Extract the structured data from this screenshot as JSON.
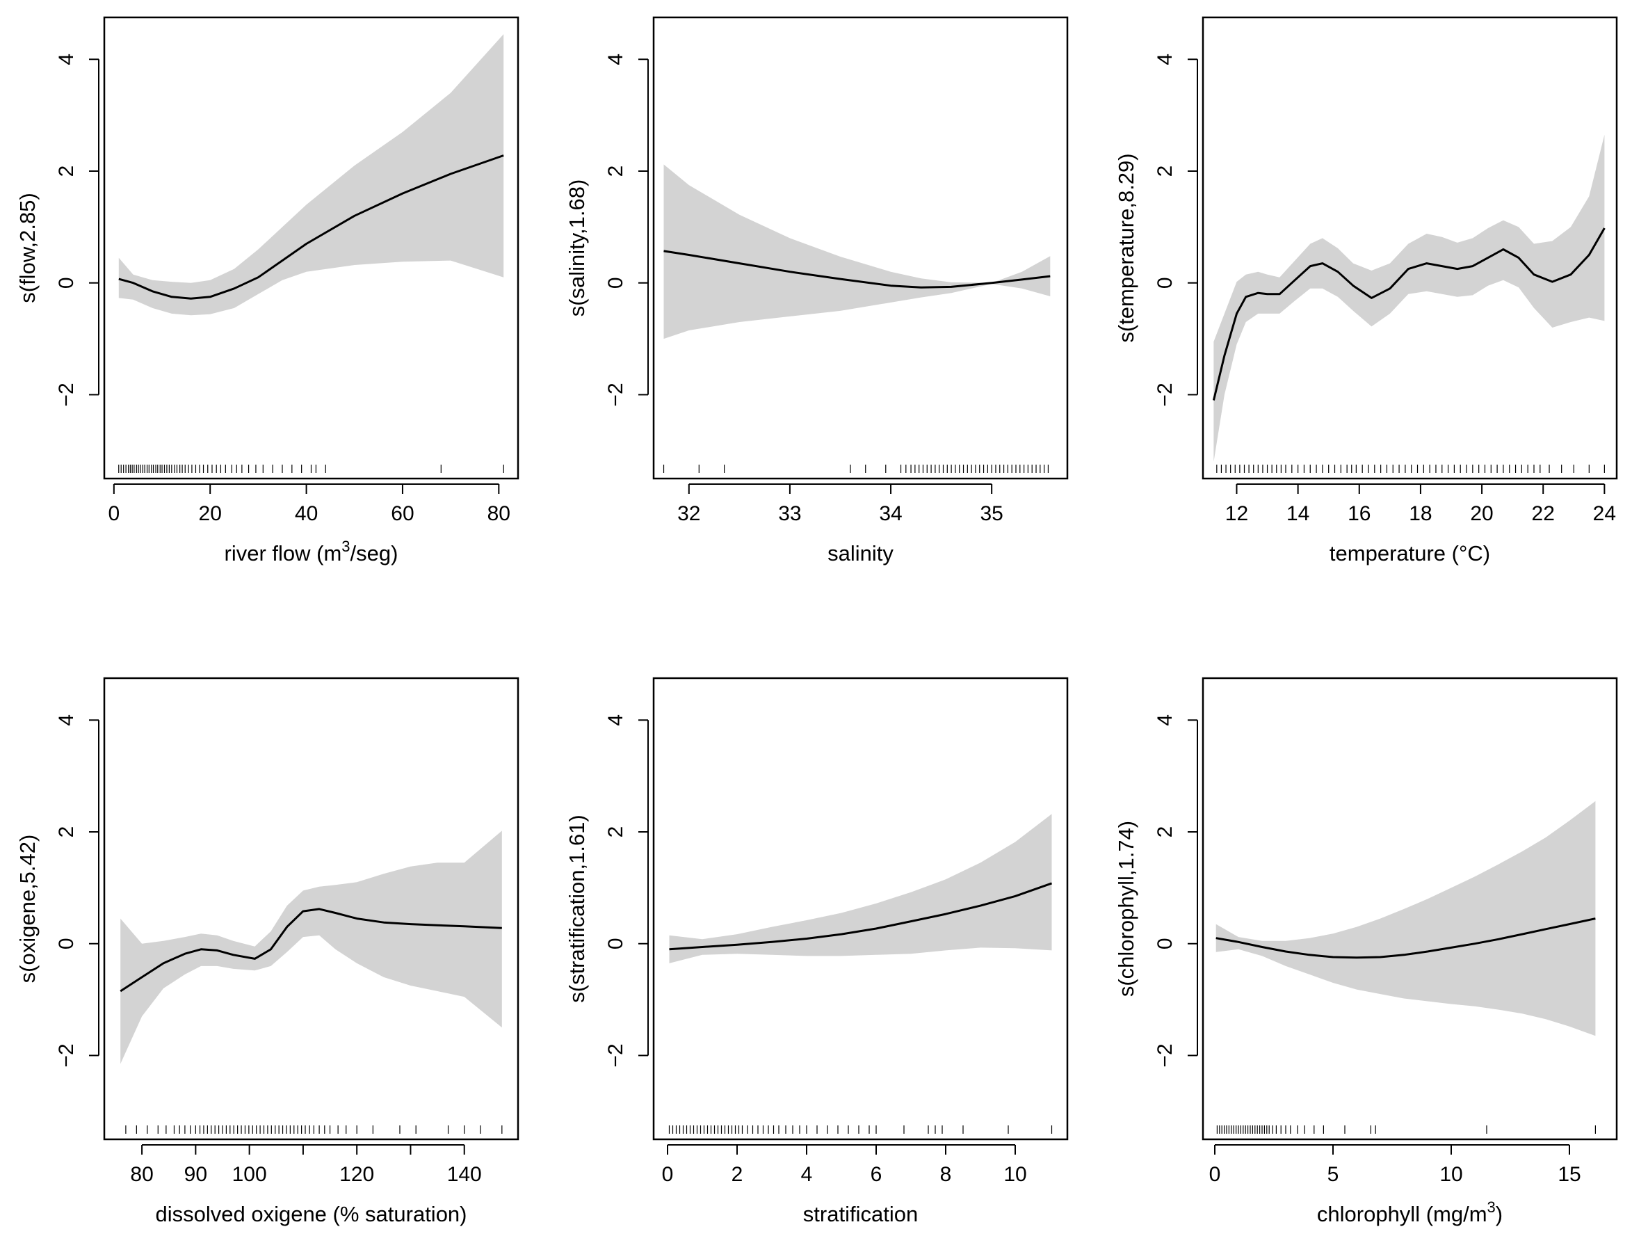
{
  "colors": {
    "band": "#d3d3d3",
    "line": "#000000",
    "frame": "#000000",
    "background": "#ffffff"
  },
  "chart_data": [
    {
      "type": "line",
      "ylabel": "s(flow,2.85)",
      "xlabel": {
        "pre": "river flow (m",
        "sup": "3",
        "post": "/seg)"
      },
      "xlim": [
        -2,
        84
      ],
      "ylim": [
        -3.5,
        4.75
      ],
      "xticks": [
        0,
        20,
        40,
        60,
        80
      ],
      "xtick_labels": [
        "0",
        "20",
        "40",
        "60",
        "80"
      ],
      "yticks": [
        -2,
        0,
        2,
        4
      ],
      "ytick_labels": [
        "−2",
        "0",
        "2",
        "4"
      ],
      "x": [
        1,
        4,
        8,
        12,
        16,
        20,
        25,
        30,
        35,
        40,
        50,
        60,
        70,
        81
      ],
      "fit": [
        0.07,
        0.0,
        -0.15,
        -0.25,
        -0.28,
        -0.25,
        -0.1,
        0.1,
        0.4,
        0.7,
        1.2,
        1.6,
        1.95,
        2.28
      ],
      "upper": [
        0.45,
        0.15,
        0.05,
        0.02,
        0.0,
        0.05,
        0.25,
        0.6,
        1.0,
        1.4,
        2.1,
        2.7,
        3.4,
        4.45
      ],
      "lower": [
        -0.27,
        -0.3,
        -0.45,
        -0.55,
        -0.58,
        -0.56,
        -0.45,
        -0.2,
        0.05,
        0.2,
        0.32,
        0.38,
        0.4,
        0.1
      ],
      "rug": [
        1,
        1.5,
        2,
        2.5,
        3,
        3.4,
        3.8,
        4.2,
        4.7,
        5.1,
        5.5,
        6,
        6.4,
        6.9,
        7.3,
        7.8,
        8.2,
        8.7,
        9.1,
        9.6,
        10,
        10.5,
        11,
        11.5,
        12,
        12.6,
        13.1,
        13.7,
        14.2,
        14.8,
        15.5,
        16.2,
        17,
        17.8,
        18.6,
        19.5,
        20.4,
        21.3,
        22.2,
        23.2,
        24.5,
        25.5,
        26.6,
        28,
        29.5,
        31,
        33,
        35,
        37,
        39,
        41,
        42,
        44,
        68,
        81
      ]
    },
    {
      "type": "line",
      "ylabel": "s(salinity,1.68)",
      "xlabel": {
        "pre": "salinity",
        "sup": "",
        "post": ""
      },
      "xlim": [
        31.65,
        35.75
      ],
      "ylim": [
        -3.5,
        4.75
      ],
      "xticks": [
        32,
        33,
        34,
        35
      ],
      "xtick_labels": [
        "32",
        "33",
        "34",
        "35"
      ],
      "yticks": [
        -2,
        0,
        2,
        4
      ],
      "ytick_labels": [
        "−2",
        "0",
        "2",
        "4"
      ],
      "x": [
        31.75,
        32,
        32.5,
        33,
        33.5,
        34,
        34.3,
        34.6,
        35,
        35.3,
        35.58
      ],
      "fit": [
        0.57,
        0.5,
        0.35,
        0.2,
        0.07,
        -0.05,
        -0.08,
        -0.07,
        0.0,
        0.06,
        0.12
      ],
      "upper": [
        2.12,
        1.75,
        1.22,
        0.8,
        0.47,
        0.2,
        0.08,
        0.01,
        0.0,
        0.2,
        0.48
      ],
      "lower": [
        -1.0,
        -0.85,
        -0.7,
        -0.6,
        -0.5,
        -0.35,
        -0.26,
        -0.18,
        -0.02,
        -0.1,
        -0.24
      ],
      "rug": [
        31.75,
        32.1,
        32.35,
        33.6,
        33.75,
        33.95,
        34.1,
        34.15,
        34.2,
        34.24,
        34.28,
        34.32,
        34.36,
        34.4,
        34.44,
        34.48,
        34.52,
        34.56,
        34.6,
        34.64,
        34.68,
        34.72,
        34.76,
        34.8,
        34.84,
        34.88,
        34.92,
        34.96,
        35.0,
        35.04,
        35.08,
        35.12,
        35.16,
        35.2,
        35.24,
        35.28,
        35.32,
        35.36,
        35.4,
        35.44,
        35.48,
        35.52,
        35.56
      ]
    },
    {
      "type": "line",
      "ylabel": "s(temperature,8.29)",
      "xlabel": {
        "pre": "temperature (°C)",
        "sup": "",
        "post": ""
      },
      "xlim": [
        10.9,
        24.4
      ],
      "ylim": [
        -3.5,
        4.75
      ],
      "xticks": [
        12,
        14,
        16,
        18,
        20,
        22,
        24
      ],
      "xtick_labels": [
        "12",
        "14",
        "16",
        "18",
        "20",
        "22",
        "24"
      ],
      "yticks": [
        -2,
        0,
        2,
        4
      ],
      "ytick_labels": [
        "−2",
        "0",
        "2",
        "4"
      ],
      "x": [
        11.25,
        11.6,
        12,
        12.3,
        12.7,
        13,
        13.4,
        13.9,
        14.4,
        14.8,
        15.3,
        15.8,
        16.4,
        17,
        17.6,
        18.2,
        18.7,
        19.2,
        19.7,
        20.2,
        20.7,
        21.2,
        21.7,
        22.3,
        22.9,
        23.5,
        24.0
      ],
      "fit": [
        -2.1,
        -1.3,
        -0.55,
        -0.25,
        -0.18,
        -0.2,
        -0.2,
        0.05,
        0.3,
        0.35,
        0.2,
        -0.05,
        -0.27,
        -0.1,
        0.25,
        0.35,
        0.3,
        0.25,
        0.3,
        0.45,
        0.6,
        0.45,
        0.15,
        0.02,
        0.15,
        0.5,
        0.98
      ],
      "upper": [
        -1.05,
        -0.55,
        0.02,
        0.15,
        0.2,
        0.15,
        0.1,
        0.4,
        0.7,
        0.8,
        0.62,
        0.35,
        0.22,
        0.35,
        0.7,
        0.88,
        0.82,
        0.72,
        0.8,
        0.98,
        1.12,
        1.0,
        0.7,
        0.75,
        1.0,
        1.55,
        2.65
      ],
      "lower": [
        -3.2,
        -2.0,
        -1.1,
        -0.7,
        -0.55,
        -0.55,
        -0.55,
        -0.32,
        -0.1,
        -0.1,
        -0.25,
        -0.5,
        -0.78,
        -0.55,
        -0.2,
        -0.15,
        -0.2,
        -0.25,
        -0.22,
        -0.05,
        0.05,
        -0.08,
        -0.45,
        -0.8,
        -0.7,
        -0.62,
        -0.68
      ],
      "rug": [
        11.35,
        11.5,
        11.65,
        11.8,
        11.95,
        12.1,
        12.25,
        12.4,
        12.55,
        12.7,
        12.85,
        13.0,
        13.15,
        13.3,
        13.45,
        13.6,
        13.8,
        14.0,
        14.2,
        14.4,
        14.6,
        14.8,
        15.0,
        15.2,
        15.4,
        15.6,
        15.75,
        15.9,
        16.1,
        16.3,
        16.5,
        16.7,
        16.9,
        17.1,
        17.3,
        17.5,
        17.7,
        17.9,
        18.1,
        18.3,
        18.5,
        18.7,
        18.9,
        19.1,
        19.3,
        19.5,
        19.7,
        19.9,
        20.1,
        20.3,
        20.5,
        20.7,
        20.9,
        21.1,
        21.3,
        21.5,
        21.7,
        21.9,
        22.2,
        22.6,
        23.0,
        23.5,
        24.0
      ]
    },
    {
      "type": "line",
      "ylabel": "s(oxigene,5.42)",
      "xlabel": {
        "pre": "dissolved oxigene (% saturation)",
        "sup": "",
        "post": ""
      },
      "xlim": [
        73,
        150
      ],
      "ylim": [
        -3.5,
        4.75
      ],
      "xticks": [
        80,
        90,
        100,
        110,
        120,
        130,
        140
      ],
      "xtick_labels": [
        "80",
        "90",
        "100",
        "",
        "120",
        "",
        "140"
      ],
      "yticks": [
        -2,
        0,
        2,
        4
      ],
      "ytick_labels": [
        "−2",
        "0",
        "2",
        "4"
      ],
      "x": [
        76,
        80,
        84,
        88,
        91,
        94,
        97,
        101,
        104,
        107,
        110,
        113,
        116,
        120,
        125,
        130,
        135,
        140,
        147
      ],
      "fit": [
        -0.85,
        -0.6,
        -0.35,
        -0.18,
        -0.1,
        -0.12,
        -0.2,
        -0.27,
        -0.1,
        0.3,
        0.58,
        0.62,
        0.55,
        0.45,
        0.38,
        0.35,
        0.33,
        0.31,
        0.28
      ],
      "upper": [
        0.45,
        0.0,
        0.05,
        0.12,
        0.18,
        0.15,
        0.05,
        -0.05,
        0.22,
        0.68,
        0.95,
        1.02,
        1.05,
        1.1,
        1.25,
        1.38,
        1.45,
        1.45,
        2.02
      ],
      "lower": [
        -2.15,
        -1.3,
        -0.8,
        -0.55,
        -0.4,
        -0.4,
        -0.45,
        -0.48,
        -0.4,
        -0.15,
        0.12,
        0.15,
        -0.1,
        -0.35,
        -0.6,
        -0.75,
        -0.85,
        -0.95,
        -1.5
      ],
      "rug": [
        77,
        79,
        81,
        83,
        84.5,
        86,
        87,
        88,
        89,
        90,
        90.8,
        91.5,
        92.2,
        92.9,
        93.6,
        94.3,
        95,
        95.7,
        96.4,
        97.1,
        97.8,
        98.5,
        99.2,
        99.9,
        100.6,
        101.3,
        102,
        102.7,
        103.4,
        104.1,
        104.8,
        105.5,
        106.2,
        106.9,
        107.6,
        108.3,
        109,
        109.7,
        110.4,
        111.2,
        112,
        113,
        114,
        115,
        116.5,
        118,
        120,
        123,
        128,
        131,
        137,
        140,
        143,
        147
      ]
    },
    {
      "type": "line",
      "ylabel": "s(stratification,1.61)",
      "xlabel": {
        "pre": "stratification",
        "sup": "",
        "post": ""
      },
      "xlim": [
        -0.4,
        11.5
      ],
      "ylim": [
        -3.5,
        4.75
      ],
      "xticks": [
        0,
        2,
        4,
        6,
        8,
        10
      ],
      "xtick_labels": [
        "0",
        "2",
        "4",
        "6",
        "8",
        "10"
      ],
      "yticks": [
        -2,
        0,
        2,
        4
      ],
      "ytick_labels": [
        "−2",
        "0",
        "2",
        "4"
      ],
      "x": [
        0.05,
        1,
        2,
        3,
        4,
        5,
        6,
        7,
        8,
        9,
        10,
        11.05
      ],
      "fit": [
        -0.1,
        -0.06,
        -0.02,
        0.03,
        0.09,
        0.17,
        0.27,
        0.4,
        0.53,
        0.68,
        0.85,
        1.08
      ],
      "upper": [
        0.15,
        0.08,
        0.17,
        0.3,
        0.42,
        0.55,
        0.72,
        0.92,
        1.15,
        1.45,
        1.82,
        2.32
      ],
      "lower": [
        -0.35,
        -0.2,
        -0.18,
        -0.2,
        -0.22,
        -0.22,
        -0.2,
        -0.18,
        -0.12,
        -0.07,
        -0.08,
        -0.12
      ],
      "rug": [
        0.05,
        0.15,
        0.25,
        0.35,
        0.45,
        0.55,
        0.65,
        0.75,
        0.85,
        0.95,
        1.05,
        1.15,
        1.25,
        1.35,
        1.45,
        1.55,
        1.65,
        1.75,
        1.85,
        1.95,
        2.05,
        2.15,
        2.3,
        2.45,
        2.6,
        2.75,
        2.9,
        3.05,
        3.2,
        3.4,
        3.6,
        3.8,
        4.0,
        4.3,
        4.6,
        4.9,
        5.2,
        5.5,
        5.8,
        6.0,
        6.8,
        7.5,
        7.7,
        7.9,
        8.5,
        9.8,
        11.05
      ]
    },
    {
      "type": "line",
      "ylabel": "s(chlorophyll,1.74)",
      "xlabel": {
        "pre": "chlorophyll (mg/m",
        "sup": "3",
        "post": ")"
      },
      "xlim": [
        -0.5,
        17
      ],
      "ylim": [
        -3.5,
        4.75
      ],
      "xticks": [
        0,
        5,
        10,
        15
      ],
      "xtick_labels": [
        "0",
        "5",
        "10",
        "15"
      ],
      "yticks": [
        -2,
        0,
        2,
        4
      ],
      "ytick_labels": [
        "−2",
        "0",
        "2",
        "4"
      ],
      "x": [
        0.05,
        1,
        2,
        3,
        4,
        5,
        6,
        7,
        8,
        9,
        10,
        11,
        12,
        13,
        14,
        15,
        16.1
      ],
      "fit": [
        0.1,
        0.03,
        -0.06,
        -0.14,
        -0.2,
        -0.24,
        -0.25,
        -0.24,
        -0.2,
        -0.14,
        -0.07,
        0.0,
        0.08,
        0.17,
        0.26,
        0.35,
        0.45
      ],
      "upper": [
        0.35,
        0.12,
        0.05,
        0.05,
        0.1,
        0.18,
        0.3,
        0.45,
        0.62,
        0.8,
        1.0,
        1.2,
        1.42,
        1.65,
        1.9,
        2.2,
        2.55
      ],
      "lower": [
        -0.15,
        -0.1,
        -0.22,
        -0.4,
        -0.55,
        -0.7,
        -0.82,
        -0.9,
        -0.98,
        -1.03,
        -1.08,
        -1.12,
        -1.18,
        -1.25,
        -1.35,
        -1.48,
        -1.65
      ],
      "rug": [
        0.1,
        0.2,
        0.3,
        0.4,
        0.5,
        0.6,
        0.7,
        0.8,
        0.9,
        1.0,
        1.1,
        1.2,
        1.3,
        1.4,
        1.5,
        1.6,
        1.7,
        1.8,
        1.9,
        2.0,
        2.1,
        2.2,
        2.3,
        2.45,
        2.6,
        2.8,
        3.0,
        3.2,
        3.5,
        3.8,
        4.2,
        4.6,
        5.5,
        6.6,
        6.8,
        11.5,
        16.1
      ]
    }
  ]
}
